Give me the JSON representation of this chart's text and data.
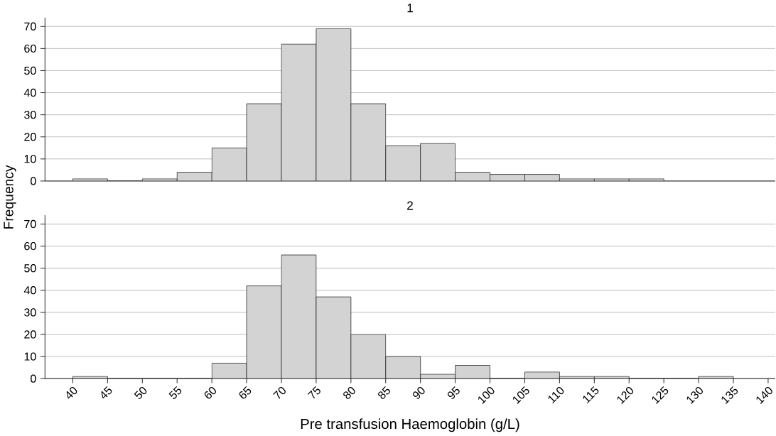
{
  "chart_data": [
    {
      "type": "histogram",
      "title": "1",
      "ylabel": "Frequency",
      "bins": [
        40,
        45,
        50,
        55,
        60,
        65,
        70,
        75,
        80,
        85,
        90,
        95,
        100,
        105,
        110,
        115,
        120,
        125
      ],
      "values": [
        1,
        0,
        1,
        4,
        15,
        35,
        62,
        69,
        35,
        16,
        17,
        4,
        3,
        3,
        1,
        1,
        1
      ],
      "color": "#d3d3d3",
      "xlim": [
        36,
        141
      ],
      "ylim": [
        0,
        74
      ],
      "yticks": [
        0,
        10,
        20,
        30,
        40,
        50,
        60,
        70
      ],
      "grid": "y",
      "tick_labels": "y"
    },
    {
      "type": "histogram",
      "title": "2",
      "xlabel": "Pre transfusion Haemoglobin (g/L)",
      "bins": [
        40,
        45,
        50,
        55,
        60,
        65,
        70,
        75,
        80,
        85,
        90,
        95,
        100,
        105,
        110,
        115,
        120,
        125,
        130,
        135
      ],
      "values": [
        1,
        0,
        0,
        0,
        7,
        42,
        56,
        37,
        20,
        10,
        2,
        6,
        0,
        3,
        1,
        1,
        0,
        0,
        1
      ],
      "color": "#d3d3d3",
      "xlim": [
        36,
        141
      ],
      "ylim": [
        0,
        74
      ],
      "yticks": [
        0,
        10,
        20,
        30,
        40,
        50,
        60,
        70
      ],
      "xticks": [
        40,
        45,
        50,
        55,
        60,
        65,
        70,
        75,
        80,
        85,
        90,
        95,
        100,
        105,
        110,
        115,
        120,
        125,
        130,
        135,
        140
      ],
      "grid": "y"
    }
  ]
}
